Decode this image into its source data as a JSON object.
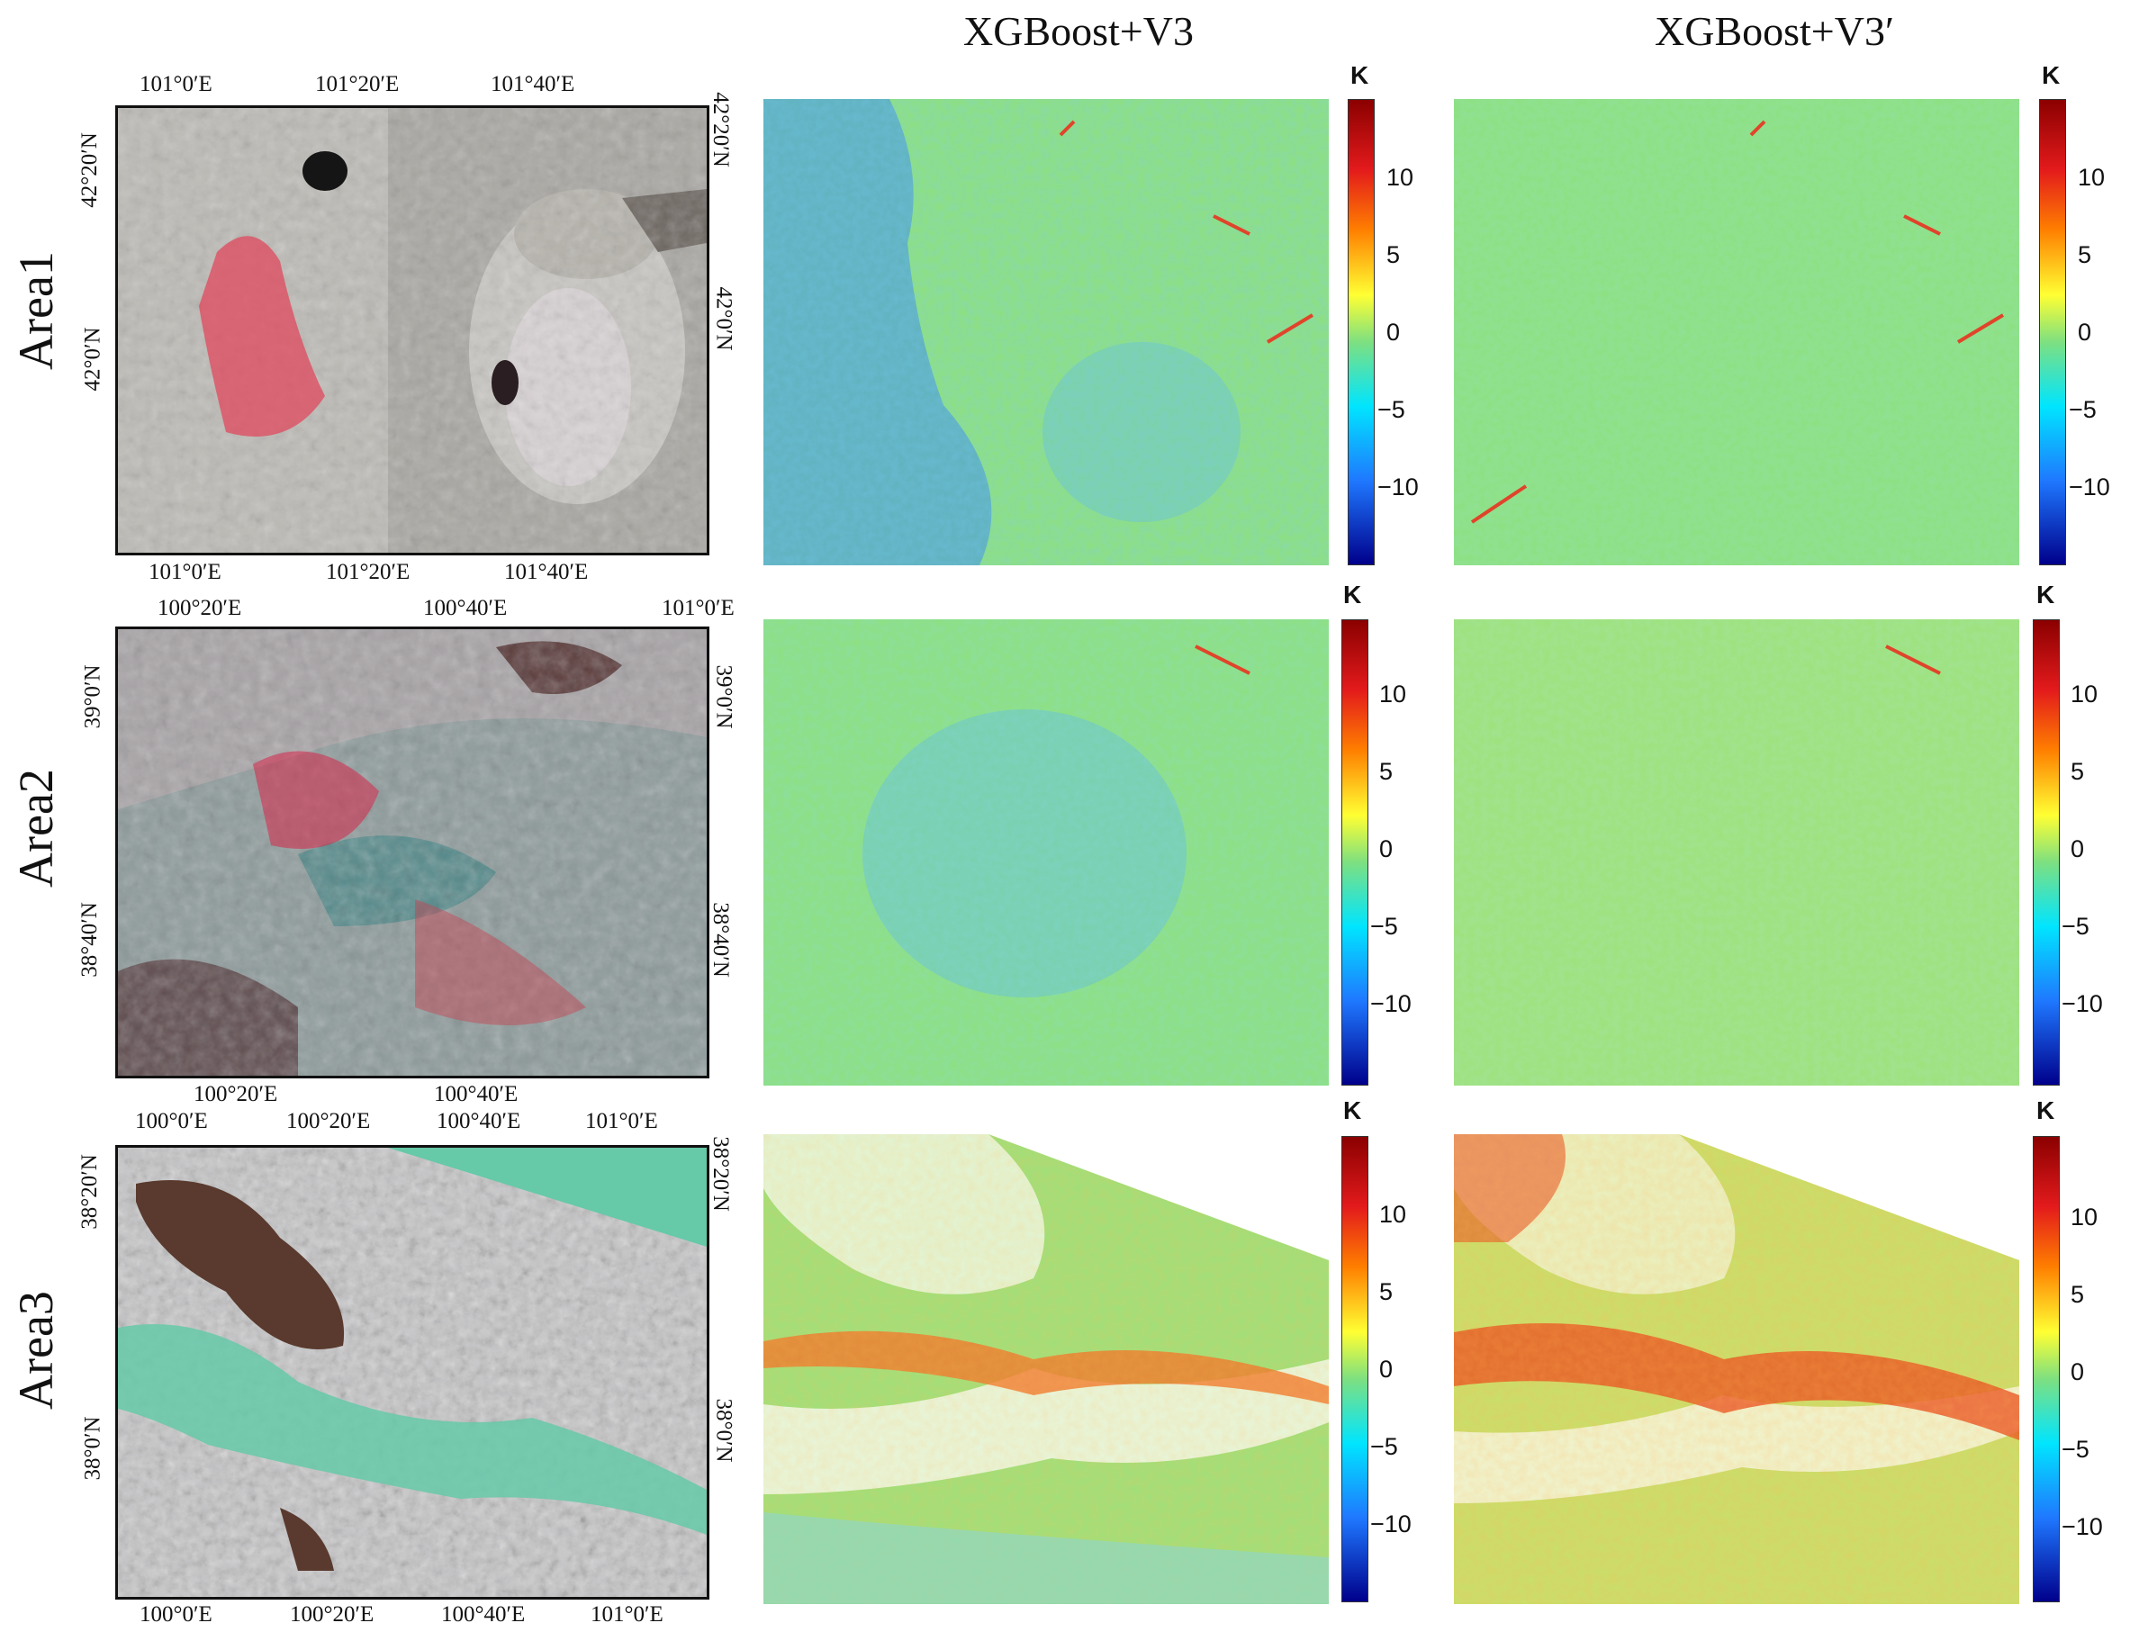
{
  "columns": {
    "col2_title": "XGBoost+V3",
    "col3_title": "XGBoost+V3′"
  },
  "rows": [
    {
      "label": "Area1",
      "top_ticks": [
        "101°0′E",
        "101°20′E",
        "101°40′E"
      ],
      "bottom_ticks": [
        "101°0′E",
        "101°20′E",
        "101°40′E"
      ],
      "left_ticks": [
        "42°20′N",
        "42°0′N"
      ],
      "right_ticks": [
        "42°20′N",
        "42°0′N"
      ]
    },
    {
      "label": "Area2",
      "top_ticks": [
        "100°20′E",
        "100°40′E",
        "101°0′E"
      ],
      "bottom_ticks": [
        "100°20′E",
        "100°40′E"
      ],
      "left_ticks": [
        "39°0′N",
        "38°40′N"
      ],
      "right_ticks": [
        "39°0′N",
        "38°40′N"
      ]
    },
    {
      "label": "Area3",
      "top_ticks": [
        "100°0′E",
        "100°20′E",
        "100°40′E",
        "101°0′E"
      ],
      "bottom_ticks": [
        "100°0′E",
        "100°20′E",
        "100°40′E",
        "101°0′E"
      ],
      "left_ticks": [
        "38°20′N",
        "38°0′N"
      ],
      "right_ticks": [
        "38°20′N",
        "38°0′N"
      ]
    }
  ],
  "colorbar": {
    "unit": "K",
    "ticks": [
      "10",
      "5",
      "0",
      "−5",
      "−10"
    ],
    "colors": [
      "#8b0000",
      "#e31a1c",
      "#ff7f00",
      "#ffff33",
      "#7fe07f",
      "#00e5ff",
      "#1f78ff",
      "#00008b"
    ]
  }
}
